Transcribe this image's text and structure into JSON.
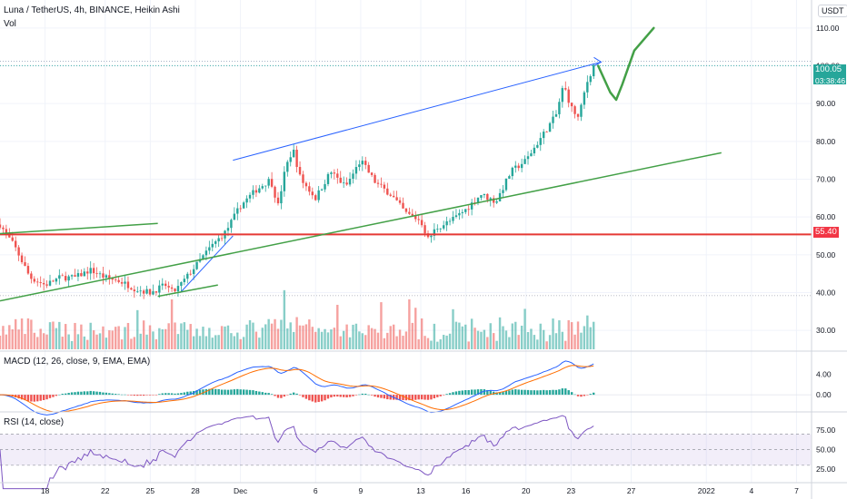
{
  "title": "Luna / TetherUS, 4h, BINANCE, Heikin Ashi",
  "volume_label": "Vol",
  "currency": "USDT",
  "price_badge": {
    "price": "100.05",
    "countdown": "03:38:46",
    "color": "#26a69a"
  },
  "level_badge": {
    "price": "55.40",
    "color": "#f23645"
  },
  "macd": {
    "label": "MACD (12, 26, close, 9, EMA, EMA)",
    "yticks": [
      "4.00",
      "0.00"
    ]
  },
  "rsi": {
    "label": "RSI (14, close)",
    "yticks": [
      "75.00",
      "50.00",
      "25.00"
    ]
  },
  "chart_data": {
    "type": "candlestick",
    "title": "Luna / TetherUS, 4h, BINANCE, Heikin Ashi",
    "x_ticks": [
      {
        "label": "18",
        "day": 18
      },
      {
        "label": "22",
        "day": 22
      },
      {
        "label": "25",
        "day": 25
      },
      {
        "label": "28",
        "day": 28
      },
      {
        "label": "Dec",
        "day": 31
      },
      {
        "label": "6",
        "day": 36
      },
      {
        "label": "9",
        "day": 39
      },
      {
        "label": "13",
        "day": 43
      },
      {
        "label": "16",
        "day": 46
      },
      {
        "label": "20",
        "day": 50
      },
      {
        "label": "23",
        "day": 53
      },
      {
        "label": "27",
        "day": 57
      },
      {
        "label": "2022",
        "day": 62
      },
      {
        "label": "4",
        "day": 65
      },
      {
        "label": "7",
        "day": 68
      }
    ],
    "y_ticks": [
      "110.00",
      "100.00",
      "90.00",
      "80.00",
      "70.00",
      "60.00",
      "50.00",
      "40.00",
      "30.00"
    ],
    "ylim": [
      25,
      115
    ],
    "xlim": [
      15,
      69
    ],
    "price_path": [
      [
        15.0,
        58
      ],
      [
        16.0,
        52
      ],
      [
        17.0,
        44
      ],
      [
        18.0,
        42
      ],
      [
        19.0,
        44
      ],
      [
        20.0,
        44
      ],
      [
        21.0,
        46
      ],
      [
        22.0,
        44
      ],
      [
        23.0,
        43
      ],
      [
        24.0,
        41
      ],
      [
        25.0,
        40
      ],
      [
        26.0,
        42
      ],
      [
        26.5,
        40
      ],
      [
        27.0,
        42
      ],
      [
        28.0,
        47
      ],
      [
        29.0,
        52
      ],
      [
        30.0,
        56
      ],
      [
        31.0,
        63
      ],
      [
        32.0,
        67
      ],
      [
        33.0,
        70
      ],
      [
        33.5,
        63
      ],
      [
        34.0,
        73
      ],
      [
        34.5,
        78
      ],
      [
        35.0,
        70
      ],
      [
        36.0,
        65
      ],
      [
        37.0,
        72
      ],
      [
        38.0,
        68
      ],
      [
        39.0,
        75
      ],
      [
        40.0,
        69
      ],
      [
        41.0,
        66
      ],
      [
        42.0,
        61
      ],
      [
        43.0,
        59
      ],
      [
        43.5,
        54
      ],
      [
        44.0,
        57
      ],
      [
        45.0,
        59
      ],
      [
        46.0,
        62
      ],
      [
        47.0,
        66
      ],
      [
        48.0,
        64
      ],
      [
        49.0,
        72
      ],
      [
        50.0,
        75
      ],
      [
        51.0,
        81
      ],
      [
        52.0,
        87
      ],
      [
        52.5,
        95
      ],
      [
        53.0,
        89
      ],
      [
        53.5,
        86
      ],
      [
        54.0,
        95
      ],
      [
        54.5,
        100.05
      ]
    ],
    "last_price": 100.05,
    "support_level": 55.4,
    "up_color": "#26a69a",
    "down_color": "#ef5350",
    "drawings": [
      {
        "type": "trend-line",
        "color": "#2962ff",
        "from": [
          27.0,
          40
        ],
        "to": [
          30.5,
          55
        ]
      },
      {
        "type": "trend-line",
        "color": "#2962ff",
        "from": [
          30.5,
          75
        ],
        "to": [
          55.0,
          101
        ]
      },
      {
        "type": "trend-line",
        "color": "#43a047",
        "from": [
          15.0,
          37.8
        ],
        "to": [
          63.0,
          77
        ]
      },
      {
        "type": "trend-line",
        "color": "#43a047",
        "from": [
          15.0,
          55.6
        ],
        "to": [
          25.5,
          58.3
        ]
      },
      {
        "type": "trend-line",
        "color": "#43a047",
        "from": [
          25.5,
          39.0
        ],
        "to": [
          29.5,
          42.0
        ]
      }
    ],
    "projection": [
      [
        54.8,
        100
      ],
      [
        55.6,
        93
      ],
      [
        56.0,
        91
      ],
      [
        56.4,
        95
      ],
      [
        57.2,
        104
      ],
      [
        58.5,
        110
      ]
    ],
    "macd_series": [
      {
        "name": "MACD",
        "color": "#2962ff"
      },
      {
        "name": "Signal",
        "color": "#ff6d00"
      }
    ],
    "macd_ylim": [
      -3,
      8
    ],
    "rsi_ylim": [
      10,
      95
    ],
    "rsi_band": [
      30,
      70
    ]
  }
}
